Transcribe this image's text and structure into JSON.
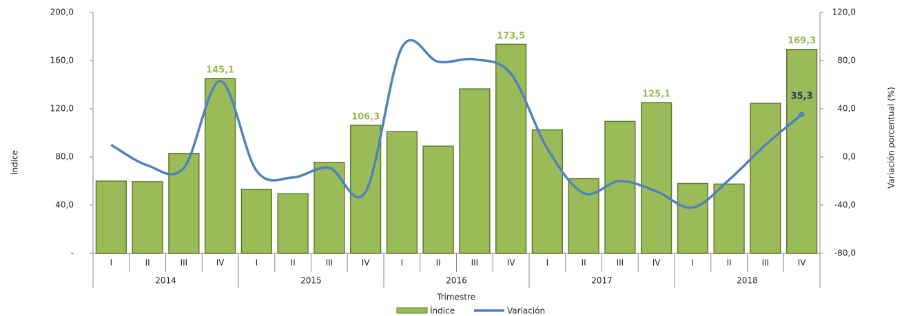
{
  "chart_data": {
    "type": "bar-line",
    "categories": [
      "I",
      "II",
      "III",
      "IV",
      "I",
      "II",
      "III",
      "IV",
      "I",
      "II",
      "III",
      "IV",
      "I",
      "II",
      "III",
      "IV",
      "I",
      "II",
      "III",
      "IV"
    ],
    "groups": [
      "2014",
      "2015",
      "2016",
      "2017",
      "2018"
    ],
    "xlabel": "Trimestre",
    "ylabel": "Índice",
    "y2label": "Variación porcentual (%)",
    "series": [
      {
        "name": "Índice",
        "type": "bar",
        "color": "#9bbb59",
        "values": [
          60,
          59.5,
          83,
          145.1,
          53,
          49.5,
          75.5,
          106.3,
          101,
          89,
          136.5,
          173.5,
          102.5,
          62,
          109.5,
          125.1,
          58,
          57.5,
          124.5,
          169.3
        ],
        "value_labels": [
          null,
          null,
          null,
          "145,1",
          null,
          null,
          null,
          "106,3",
          null,
          null,
          null,
          "173,5",
          null,
          null,
          null,
          "125,1",
          null,
          null,
          null,
          "169,3"
        ]
      },
      {
        "name": "Variación",
        "type": "line",
        "axis": "y2",
        "color": "#4f81bd",
        "values": [
          10,
          -7,
          -9,
          63,
          -11.5,
          -17,
          -9,
          -29,
          91,
          79,
          81,
          69,
          7,
          -30,
          -20,
          -28.5,
          -42,
          -19,
          10,
          35.3
        ],
        "value_labels": [
          null,
          null,
          null,
          null,
          null,
          null,
          null,
          null,
          null,
          null,
          null,
          null,
          null,
          null,
          null,
          null,
          null,
          null,
          null,
          "35,3"
        ]
      }
    ],
    "ylim": [
      0,
      200
    ],
    "yticks": [
      {
        "value": 0,
        "label": "-"
      },
      {
        "value": 40,
        "label": "40,0"
      },
      {
        "value": 80,
        "label": "80,0"
      },
      {
        "value": 120,
        "label": "120,0"
      },
      {
        "value": 160,
        "label": "160,0"
      },
      {
        "value": 200,
        "label": "200,0"
      }
    ],
    "y2lim": [
      -80,
      120
    ],
    "y2ticks": [
      {
        "value": -80,
        "label": "-80,0"
      },
      {
        "value": -40,
        "label": "-40,0"
      },
      {
        "value": 0,
        "label": "0,0"
      },
      {
        "value": 40,
        "label": "40,0"
      },
      {
        "value": 80,
        "label": "80,0"
      },
      {
        "value": 120,
        "label": "120,0"
      }
    ],
    "legend": "bottom"
  }
}
